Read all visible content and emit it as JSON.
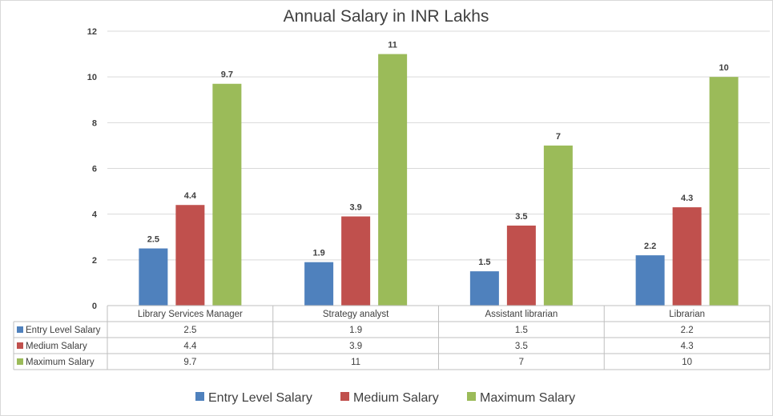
{
  "chart_data": {
    "type": "bar",
    "title": "Annual Salary in INR Lakhs",
    "categories": [
      "Library Services Manager",
      "Strategy analyst",
      "Assistant librarian",
      "Librarian"
    ],
    "series": [
      {
        "name": "Entry Level Salary",
        "color": "#4F81BD",
        "values": [
          2.5,
          1.9,
          1.5,
          2.2
        ]
      },
      {
        "name": "Medium Salary",
        "color": "#C0504D",
        "values": [
          4.4,
          3.9,
          3.5,
          4.3
        ]
      },
      {
        "name": "Maximum Salary",
        "color": "#9BBB59",
        "values": [
          9.7,
          11,
          7,
          10
        ]
      }
    ],
    "ylim": [
      0,
      12
    ],
    "yticks": [
      0,
      2,
      4,
      6,
      8,
      10,
      12
    ],
    "grid": true,
    "data_table": true,
    "legend": "bottom"
  }
}
